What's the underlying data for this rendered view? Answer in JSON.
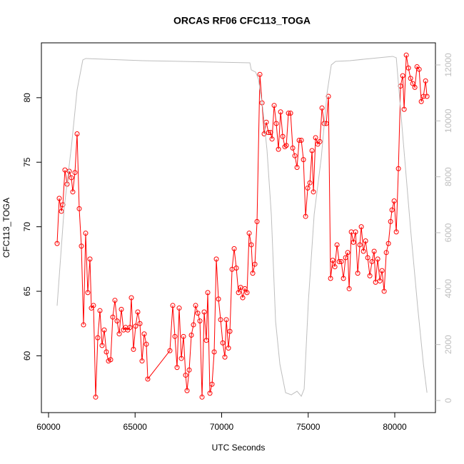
{
  "chart_data": {
    "type": "line",
    "title": "ORCAS RF06 CFC113_TOGA",
    "xlabel": "UTC Seconds",
    "ylabel": "CFC113_TOGA",
    "xlim": [
      59588,
      82350
    ],
    "xticks": [
      60000,
      65000,
      70000,
      75000,
      80000
    ],
    "ylim": [
      55.6,
      84.25
    ],
    "yticks": [
      60,
      65,
      70,
      75,
      80
    ],
    "y2lim": [
      -433,
      12790
    ],
    "y2ticks": [
      0,
      2000,
      4000,
      6000,
      8000,
      10000,
      12000
    ],
    "y2color": "#bebebe",
    "series": [
      {
        "color": "#ff0000",
        "points": true,
        "x": [
          60495,
          60619,
          60742,
          60825,
          60948,
          61072,
          61196,
          61320,
          61402,
          61526,
          61650,
          61773,
          61897,
          62021,
          62144,
          62268,
          62392,
          62474,
          62598,
          62722,
          62845,
          62969,
          63093,
          63217,
          63340,
          63464,
          63588,
          63711,
          63835,
          63959,
          64083,
          64206,
          64330,
          64454,
          64577,
          64701,
          64784,
          64907,
          65031,
          65155,
          65279,
          65402,
          65526,
          65650,
          65732,
          67011,
          67176,
          67300,
          67424,
          67547,
          67671,
          67795,
          67919,
          68001,
          68125,
          68249,
          68372,
          68496,
          68620,
          68744,
          68868,
          68991,
          69115,
          69197,
          69321,
          69445,
          69569,
          69692,
          69816,
          69940,
          70064,
          70187,
          70270,
          70393,
          70476,
          70600,
          70723,
          70847,
          70971,
          71095,
          71218,
          71342,
          71466,
          71590,
          71713,
          71796,
          71920,
          72043,
          72208,
          72332,
          72456,
          72580,
          72704,
          72827,
          72910,
          73033,
          73157,
          73281,
          73405,
          73529,
          73652,
          73735,
          73859,
          73982,
          74106,
          74230,
          74354,
          74477,
          74601,
          74725,
          74849,
          74972,
          75096,
          75220,
          75302,
          75426,
          75550,
          75674,
          75797,
          75921,
          76045,
          76169,
          76292,
          76416,
          76540,
          76664,
          76787,
          76911,
          77035,
          77159,
          77282,
          77365,
          77489,
          77612,
          77736,
          77860,
          77984,
          78066,
          78190,
          78314,
          78437,
          78561,
          78685,
          78809,
          78891,
          79015,
          79139,
          79263,
          79386,
          79510,
          79634,
          79758,
          79840,
          79964,
          80088,
          80211,
          80335,
          80459,
          80541,
          80665,
          80789,
          80912,
          81036,
          81160,
          81284,
          81407,
          81531,
          81655,
          81779,
          81861
        ],
        "values": [
          68.7,
          72.2,
          71.2,
          71.7,
          74.4,
          73.3,
          74.3,
          73.8,
          72.7,
          74.2,
          77.2,
          71.4,
          68.5,
          62.4,
          69.5,
          64.9,
          67.5,
          63.7,
          63.9,
          56.8,
          61.4,
          63.5,
          60.8,
          62.0,
          60.3,
          59.6,
          59.7,
          63.0,
          64.3,
          62.7,
          61.7,
          63.6,
          62.0,
          62.2,
          62.0,
          62.2,
          64.5,
          60.5,
          62.3,
          63.4,
          62.5,
          59.6,
          61.7,
          60.9,
          58.2,
          60.4,
          63.9,
          61.5,
          59.1,
          63.7,
          59.8,
          61.5,
          58.5,
          57.3,
          58.9,
          61.6,
          62.4,
          63.9,
          63.3,
          62.7,
          56.8,
          63.4,
          61.2,
          64.9,
          57.1,
          57.8,
          60.3,
          67.5,
          64.4,
          62.8,
          61.0,
          59.9,
          62.8,
          60.6,
          61.9,
          66.7,
          68.3,
          66.8,
          64.9,
          65.3,
          64.5,
          65.2,
          64.9,
          69.5,
          68.6,
          66.4,
          67.1,
          70.4,
          81.8,
          79.6,
          77.2,
          78.1,
          77.3,
          77.3,
          76.8,
          79.4,
          78.0,
          76.0,
          78.9,
          77.0,
          76.2,
          76.3,
          78.8,
          78.8,
          76.1,
          75.5,
          74.6,
          76.7,
          76.7,
          75.2,
          70.8,
          73.0,
          73.4,
          75.9,
          72.7,
          76.9,
          76.4,
          76.6,
          79.2,
          78.0,
          78.0,
          80.1,
          66.0,
          67.4,
          66.9,
          68.6,
          67.3,
          67.3,
          66.0,
          67.6,
          68.0,
          65.2,
          69.6,
          68.8,
          69.6,
          66.4,
          68.6,
          70.0,
          68.1,
          68.9,
          67.6,
          66.2,
          67.3,
          68.1,
          65.7,
          67.5,
          65.8,
          66.6,
          65.0,
          68.0,
          68.7,
          70.4,
          71.3,
          72.0,
          69.6,
          74.5,
          80.9,
          81.7,
          79.1,
          83.3,
          82.3,
          81.5,
          81.1,
          80.8,
          82.4,
          82.2,
          79.7,
          80.1,
          81.3,
          80.1
        ]
      },
      {
        "color": "#bebebe",
        "axis": "y2",
        "x": [
          60495,
          60907,
          61320,
          61650,
          61980,
          62144,
          65443,
          71630,
          71713,
          71961,
          72126,
          72373,
          72621,
          72869,
          73116,
          73364,
          73694,
          74024,
          74354,
          74601,
          74766,
          75014,
          75344,
          75756,
          76086,
          76334,
          76581,
          77406,
          79881,
          80088,
          80500,
          80912,
          81325,
          81655,
          81861
        ],
        "values": [
          3389,
          6904,
          9070,
          11108,
          12178,
          12229,
          12153,
          12076,
          11822,
          11745,
          11490,
          10471,
          8943,
          6650,
          2828,
          1299,
          280,
          204,
          331,
          153,
          408,
          3592,
          6650,
          8688,
          10981,
          12000,
          12127,
          12153,
          12306,
          12255,
          9197,
          6140,
          3338,
          1299,
          280
        ]
      }
    ]
  }
}
